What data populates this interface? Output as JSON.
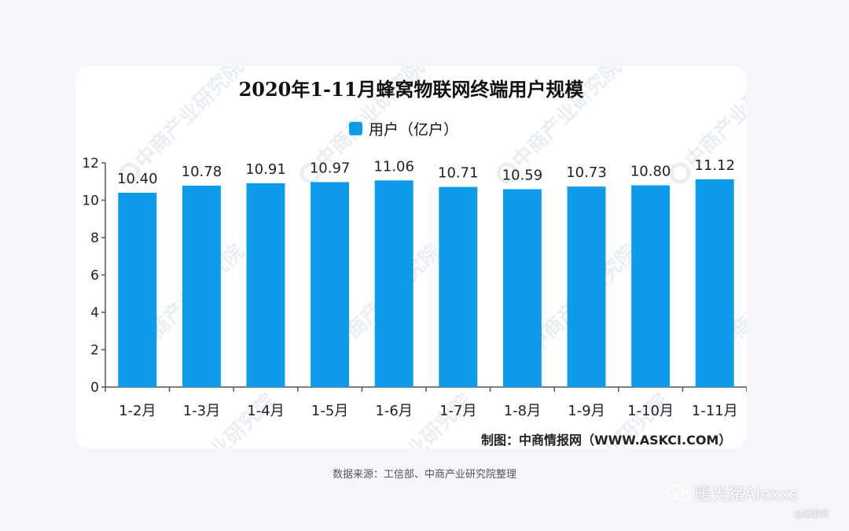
{
  "chart_data": {
    "type": "bar",
    "title": "2020年1-11月蜂窝物联网终端用户规模",
    "categories": [
      "1-2月",
      "1-3月",
      "1-4月",
      "1-5月",
      "1-6月",
      "1-7月",
      "1-8月",
      "1-9月",
      "1-10月",
      "1-11月"
    ],
    "series": [
      {
        "name": "用户（亿户）",
        "values": [
          10.4,
          10.78,
          10.91,
          10.97,
          11.06,
          10.71,
          10.59,
          10.73,
          10.8,
          11.12
        ]
      }
    ],
    "value_labels": [
      "10.40",
      "10.78",
      "10.91",
      "10.97",
      "11.06",
      "10.71",
      "10.59",
      "10.73",
      "10.80",
      "11.12"
    ],
    "ylim": [
      0,
      12
    ],
    "yticks": [
      "0",
      "2",
      "4",
      "6",
      "8",
      "10",
      "12"
    ],
    "xlabel": "",
    "ylabel": "",
    "grid": false,
    "legend_position": "top-center",
    "bar_color": "#0f9bea"
  },
  "credit": "制图：中商情报网（WWW.ASKCI.COM）",
  "watermark": "中商产业研究院",
  "source_note": "数据来源：工信部、中商产业研究院整理",
  "wechat": {
    "icon": "wechat-icon",
    "account": "暖光猪Alexxs"
  },
  "handle": "@猪雨荷"
}
